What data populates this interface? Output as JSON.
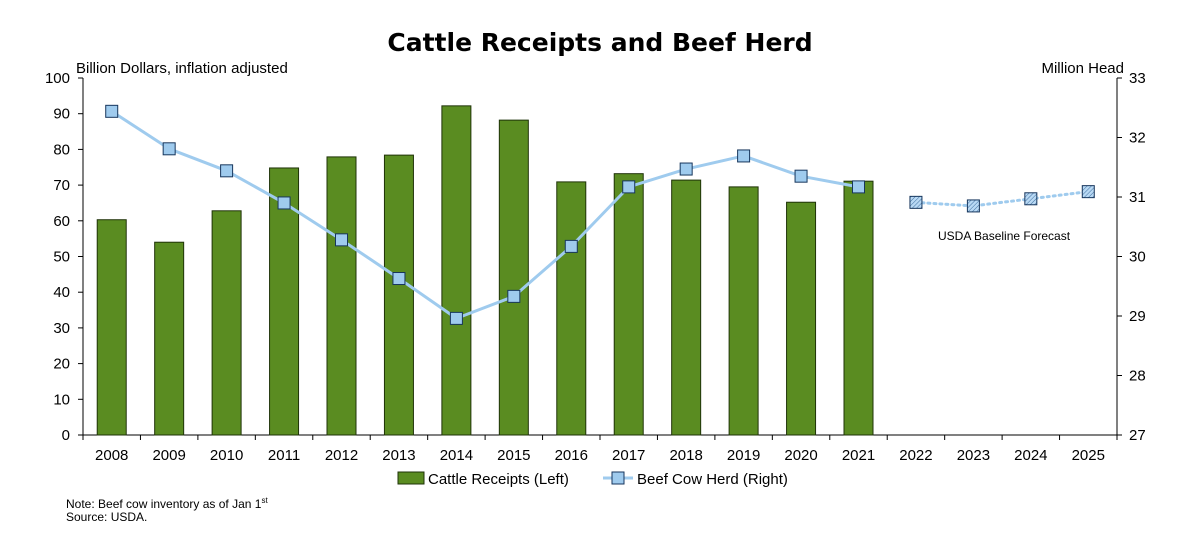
{
  "chart_data": {
    "type": "bar+line",
    "title": "Cattle Receipts and Beef Herd",
    "left_axis": {
      "title": "Billion Dollars, inflation adjusted",
      "min": 0,
      "max": 100,
      "step": 10
    },
    "right_axis": {
      "title": "Million Head",
      "min": 27,
      "max": 33,
      "step": 1
    },
    "categories": [
      "2008",
      "2009",
      "2010",
      "2011",
      "2012",
      "2013",
      "2014",
      "2015",
      "2016",
      "2017",
      "2018",
      "2019",
      "2020",
      "2021",
      "2022",
      "2023",
      "2024",
      "2025"
    ],
    "series": [
      {
        "name": "Cattle Receipts (Left)",
        "kind": "bar",
        "axis": "left",
        "color": "#5a8c21",
        "values": [
          60.3,
          54.0,
          62.8,
          74.8,
          77.9,
          78.4,
          92.2,
          88.2,
          70.9,
          73.2,
          71.4,
          69.5,
          65.2,
          71.1,
          null,
          null,
          null,
          null
        ]
      },
      {
        "name": "Beef Cow Herd (Right)",
        "kind": "line",
        "axis": "right",
        "color": "#9fcbee",
        "values": [
          32.44,
          31.81,
          31.44,
          30.9,
          30.28,
          29.63,
          28.96,
          29.33,
          30.17,
          31.17,
          31.47,
          31.69,
          31.35,
          31.17,
          null,
          null,
          null,
          null
        ]
      }
    ],
    "forecast": {
      "label": "USDA Baseline Forecast",
      "categories": [
        "2022",
        "2023",
        "2024",
        "2025"
      ],
      "values": [
        30.91,
        30.85,
        30.97,
        31.09
      ]
    },
    "legend_position": "bottom",
    "grid": false
  },
  "notes": {
    "line1_prefix": "Note: Beef cow inventory as of Jan 1",
    "line1_sup": "st",
    "line2": "Source: USDA."
  }
}
